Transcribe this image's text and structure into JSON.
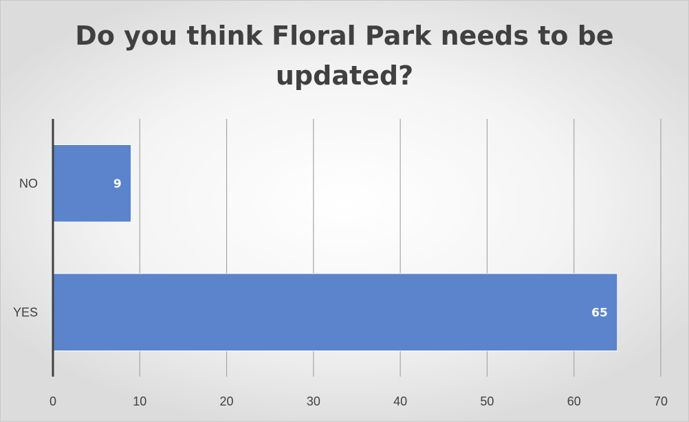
{
  "chart_data": {
    "type": "bar",
    "orientation": "horizontal",
    "title": "Do you think Floral Park needs to be updated?",
    "categories": [
      "NO",
      "YES"
    ],
    "values": [
      9,
      65
    ],
    "xlim": [
      0,
      70
    ],
    "x_ticks": [
      0,
      10,
      20,
      30,
      40,
      50,
      60,
      70
    ],
    "grid": "vertical",
    "legend": "none",
    "data_labels": true,
    "colors": {
      "bar": "#5b84cc",
      "bar_edge": "#ffffff",
      "gridline": "#a6a6a6",
      "axis": "#404040",
      "text": "#404040",
      "data_label": "#ffffff"
    }
  }
}
